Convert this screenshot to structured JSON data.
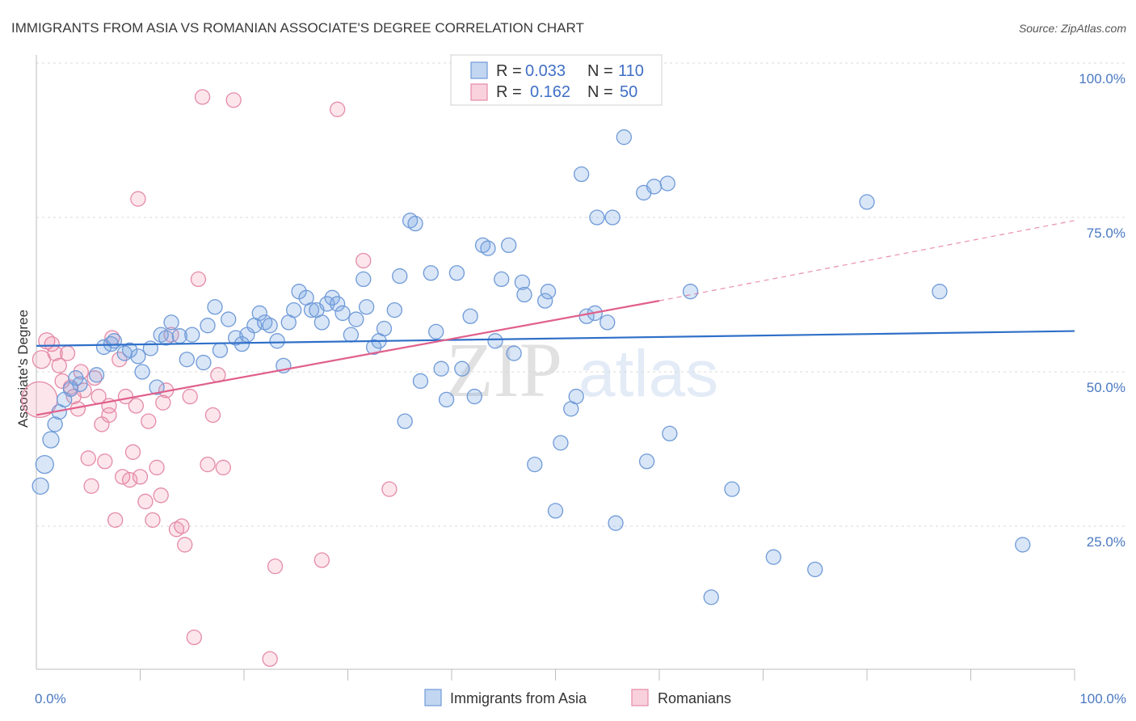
{
  "title": "IMMIGRANTS FROM ASIA VS ROMANIAN ASSOCIATE'S DEGREE CORRELATION CHART",
  "source": "Source: ZipAtlas.com",
  "watermark": "ZIPatlas",
  "colors": {
    "series_a": "#6f9ad8",
    "series_a_line": "#2f6fc8",
    "series_b": "#e58aa8",
    "series_b_line": "#e0608c",
    "tick": "#4a78c2"
  },
  "legend": {
    "rows": [
      {
        "r_label": "R =",
        "r_value": "0.033",
        "n_label": "N =",
        "n_value": "110"
      },
      {
        "r_label": "R =",
        "r_value": "0.162",
        "n_label": "N =",
        "n_value": "50"
      }
    ]
  },
  "chart_data": {
    "type": "scatter",
    "title": "IMMIGRANTS FROM ASIA VS ROMANIAN ASSOCIATE'S DEGREE CORRELATION CHART",
    "xlabel": "",
    "ylabel": "Associate's Degree",
    "xlim": [
      0,
      100
    ],
    "ylim": [
      0,
      100
    ],
    "x_tick_labels": [
      "0.0%",
      "100.0%"
    ],
    "y_ticks": [
      25,
      50,
      75,
      100
    ],
    "y_tick_labels": [
      "25.0%",
      "50.0%",
      "75.0%",
      "100.0%"
    ],
    "grid": true,
    "legend_position": "top-center",
    "series": [
      {
        "name": "Immigrants from Asia",
        "r": 0.033,
        "n": 110,
        "trend": {
          "x": [
            0,
            100
          ],
          "y": [
            54.2,
            56.6
          ]
        },
        "points": [
          {
            "x": 0.4,
            "y": 31.5,
            "s": 10
          },
          {
            "x": 0.8,
            "y": 35.0,
            "s": 11
          },
          {
            "x": 1.4,
            "y": 39.0,
            "s": 10
          },
          {
            "x": 1.8,
            "y": 41.5,
            "s": 9
          },
          {
            "x": 2.2,
            "y": 43.5,
            "s": 9
          },
          {
            "x": 2.7,
            "y": 45.5,
            "s": 9
          },
          {
            "x": 3.3,
            "y": 47.2,
            "s": 9
          },
          {
            "x": 3.8,
            "y": 49.0,
            "s": 9
          },
          {
            "x": 4.2,
            "y": 48.0,
            "s": 9
          },
          {
            "x": 5.8,
            "y": 49.5,
            "s": 9
          },
          {
            "x": 6.5,
            "y": 54.0,
            "s": 9
          },
          {
            "x": 7.2,
            "y": 54.5,
            "s": 9
          },
          {
            "x": 7.5,
            "y": 55.0,
            "s": 9
          },
          {
            "x": 8.5,
            "y": 53.0,
            "s": 9
          },
          {
            "x": 9.0,
            "y": 53.5,
            "s": 9
          },
          {
            "x": 9.8,
            "y": 52.5,
            "s": 9
          },
          {
            "x": 10.2,
            "y": 50.0,
            "s": 9
          },
          {
            "x": 11.0,
            "y": 53.8,
            "s": 9
          },
          {
            "x": 11.6,
            "y": 47.5,
            "s": 9
          },
          {
            "x": 12.0,
            "y": 56.0,
            "s": 9
          },
          {
            "x": 12.5,
            "y": 55.5,
            "s": 9
          },
          {
            "x": 13.0,
            "y": 58.0,
            "s": 9
          },
          {
            "x": 13.8,
            "y": 55.8,
            "s": 9
          },
          {
            "x": 14.5,
            "y": 52.0,
            "s": 9
          },
          {
            "x": 15.0,
            "y": 56.0,
            "s": 9
          },
          {
            "x": 16.1,
            "y": 51.5,
            "s": 9
          },
          {
            "x": 16.5,
            "y": 57.5,
            "s": 9
          },
          {
            "x": 17.2,
            "y": 60.5,
            "s": 9
          },
          {
            "x": 17.7,
            "y": 53.5,
            "s": 9
          },
          {
            "x": 18.5,
            "y": 58.5,
            "s": 9
          },
          {
            "x": 19.2,
            "y": 55.5,
            "s": 9
          },
          {
            "x": 19.8,
            "y": 54.5,
            "s": 9
          },
          {
            "x": 20.3,
            "y": 56.0,
            "s": 9
          },
          {
            "x": 21.0,
            "y": 57.5,
            "s": 9
          },
          {
            "x": 21.5,
            "y": 59.5,
            "s": 9
          },
          {
            "x": 22.0,
            "y": 58.0,
            "s": 9
          },
          {
            "x": 22.5,
            "y": 57.5,
            "s": 9
          },
          {
            "x": 23.2,
            "y": 55.0,
            "s": 9
          },
          {
            "x": 23.8,
            "y": 51.0,
            "s": 9
          },
          {
            "x": 24.3,
            "y": 58.0,
            "s": 9
          },
          {
            "x": 24.8,
            "y": 60.0,
            "s": 9
          },
          {
            "x": 25.3,
            "y": 63.0,
            "s": 9
          },
          {
            "x": 26.0,
            "y": 62.0,
            "s": 9
          },
          {
            "x": 26.5,
            "y": 60.0,
            "s": 9
          },
          {
            "x": 27.0,
            "y": 60.0,
            "s": 9
          },
          {
            "x": 27.5,
            "y": 58.0,
            "s": 9
          },
          {
            "x": 28.0,
            "y": 61.0,
            "s": 9
          },
          {
            "x": 28.5,
            "y": 62.0,
            "s": 9
          },
          {
            "x": 29.0,
            "y": 61.0,
            "s": 9
          },
          {
            "x": 29.5,
            "y": 59.5,
            "s": 9
          },
          {
            "x": 30.3,
            "y": 56.0,
            "s": 9
          },
          {
            "x": 30.8,
            "y": 58.5,
            "s": 9
          },
          {
            "x": 31.5,
            "y": 65.0,
            "s": 9
          },
          {
            "x": 31.8,
            "y": 60.5,
            "s": 9
          },
          {
            "x": 32.5,
            "y": 54.0,
            "s": 9
          },
          {
            "x": 33.0,
            "y": 55.0,
            "s": 9
          },
          {
            "x": 33.5,
            "y": 57.0,
            "s": 9
          },
          {
            "x": 34.5,
            "y": 60.0,
            "s": 9
          },
          {
            "x": 35.0,
            "y": 65.5,
            "s": 9
          },
          {
            "x": 35.5,
            "y": 42.0,
            "s": 9
          },
          {
            "x": 36.0,
            "y": 74.5,
            "s": 9
          },
          {
            "x": 36.5,
            "y": 74.0,
            "s": 9
          },
          {
            "x": 37.0,
            "y": 48.5,
            "s": 9
          },
          {
            "x": 38.0,
            "y": 66.0,
            "s": 9
          },
          {
            "x": 38.5,
            "y": 56.5,
            "s": 9
          },
          {
            "x": 39.0,
            "y": 50.5,
            "s": 9
          },
          {
            "x": 39.5,
            "y": 45.5,
            "s": 9
          },
          {
            "x": 40.5,
            "y": 66.0,
            "s": 9
          },
          {
            "x": 41.0,
            "y": 50.5,
            "s": 9
          },
          {
            "x": 41.8,
            "y": 59.0,
            "s": 9
          },
          {
            "x": 42.2,
            "y": 46.0,
            "s": 9
          },
          {
            "x": 43.0,
            "y": 70.5,
            "s": 9
          },
          {
            "x": 43.5,
            "y": 70.0,
            "s": 9
          },
          {
            "x": 44.2,
            "y": 55.0,
            "s": 9
          },
          {
            "x": 44.8,
            "y": 65.0,
            "s": 9
          },
          {
            "x": 45.5,
            "y": 70.5,
            "s": 9
          },
          {
            "x": 46.0,
            "y": 53.0,
            "s": 9
          },
          {
            "x": 46.8,
            "y": 64.5,
            "s": 9
          },
          {
            "x": 47.0,
            "y": 62.5,
            "s": 9
          },
          {
            "x": 48.0,
            "y": 35.0,
            "s": 9
          },
          {
            "x": 49.0,
            "y": 61.5,
            "s": 9
          },
          {
            "x": 49.3,
            "y": 63.0,
            "s": 9
          },
          {
            "x": 50.0,
            "y": 27.5,
            "s": 9
          },
          {
            "x": 50.5,
            "y": 38.5,
            "s": 9
          },
          {
            "x": 51.5,
            "y": 44.0,
            "s": 9
          },
          {
            "x": 52.0,
            "y": 46.0,
            "s": 9
          },
          {
            "x": 52.5,
            "y": 82.0,
            "s": 9
          },
          {
            "x": 53.0,
            "y": 59.0,
            "s": 9
          },
          {
            "x": 53.8,
            "y": 59.5,
            "s": 9
          },
          {
            "x": 54.0,
            "y": 75.0,
            "s": 9
          },
          {
            "x": 55.0,
            "y": 58.0,
            "s": 9
          },
          {
            "x": 55.5,
            "y": 75.0,
            "s": 9
          },
          {
            "x": 55.8,
            "y": 25.5,
            "s": 9
          },
          {
            "x": 56.6,
            "y": 88.0,
            "s": 9
          },
          {
            "x": 58.5,
            "y": 79.0,
            "s": 9
          },
          {
            "x": 58.8,
            "y": 35.5,
            "s": 9
          },
          {
            "x": 59.5,
            "y": 80.0,
            "s": 9
          },
          {
            "x": 61.0,
            "y": 40.0,
            "s": 9
          },
          {
            "x": 60.8,
            "y": 80.5,
            "s": 9
          },
          {
            "x": 63.0,
            "y": 63.0,
            "s": 9
          },
          {
            "x": 65.0,
            "y": 13.5,
            "s": 9
          },
          {
            "x": 67.0,
            "y": 31.0,
            "s": 9
          },
          {
            "x": 71.0,
            "y": 20.0,
            "s": 9
          },
          {
            "x": 75.0,
            "y": 18.0,
            "s": 9
          },
          {
            "x": 80.0,
            "y": 77.5,
            "s": 9
          },
          {
            "x": 87.0,
            "y": 63.0,
            "s": 9
          },
          {
            "x": 95.0,
            "y": 22.0,
            "s": 9
          }
        ]
      },
      {
        "name": "Romanians",
        "r": 0.162,
        "n": 50,
        "trend": {
          "x": [
            0,
            60
          ],
          "y": [
            43.0,
            61.5
          ]
        },
        "trend_dashed": {
          "x": [
            60,
            100
          ],
          "y": [
            61.5,
            74.5
          ]
        },
        "points": [
          {
            "x": 0.3,
            "y": 45.5,
            "s": 22
          },
          {
            "x": 0.5,
            "y": 52.0,
            "s": 11
          },
          {
            "x": 1.0,
            "y": 55.0,
            "s": 10
          },
          {
            "x": 1.5,
            "y": 54.5,
            "s": 9
          },
          {
            "x": 1.8,
            "y": 53.0,
            "s": 9
          },
          {
            "x": 2.2,
            "y": 51.0,
            "s": 9
          },
          {
            "x": 2.5,
            "y": 48.5,
            "s": 9
          },
          {
            "x": 3.0,
            "y": 53.0,
            "s": 9
          },
          {
            "x": 3.3,
            "y": 47.5,
            "s": 9
          },
          {
            "x": 3.6,
            "y": 46.0,
            "s": 9
          },
          {
            "x": 4.0,
            "y": 44.0,
            "s": 9
          },
          {
            "x": 4.3,
            "y": 50.0,
            "s": 9
          },
          {
            "x": 4.6,
            "y": 47.0,
            "s": 9
          },
          {
            "x": 5.0,
            "y": 36.0,
            "s": 9
          },
          {
            "x": 5.3,
            "y": 31.5,
            "s": 9
          },
          {
            "x": 5.6,
            "y": 49.0,
            "s": 9
          },
          {
            "x": 6.0,
            "y": 46.0,
            "s": 9
          },
          {
            "x": 6.3,
            "y": 41.5,
            "s": 9
          },
          {
            "x": 6.6,
            "y": 35.5,
            "s": 9
          },
          {
            "x": 7.0,
            "y": 44.5,
            "s": 9
          },
          {
            "x": 7.3,
            "y": 55.5,
            "s": 9
          },
          {
            "x": 7.6,
            "y": 26.0,
            "s": 9
          },
          {
            "x": 8.0,
            "y": 52.0,
            "s": 9
          },
          {
            "x": 8.3,
            "y": 33.0,
            "s": 9
          },
          {
            "x": 8.6,
            "y": 46.0,
            "s": 9
          },
          {
            "x": 9.0,
            "y": 32.5,
            "s": 9
          },
          {
            "x": 9.3,
            "y": 37.0,
            "s": 9
          },
          {
            "x": 9.6,
            "y": 44.5,
            "s": 9
          },
          {
            "x": 9.8,
            "y": 78.0,
            "s": 9
          },
          {
            "x": 10.0,
            "y": 33.0,
            "s": 9
          },
          {
            "x": 10.5,
            "y": 29.0,
            "s": 9
          },
          {
            "x": 10.8,
            "y": 42.0,
            "s": 9
          },
          {
            "x": 11.2,
            "y": 26.0,
            "s": 9
          },
          {
            "x": 11.6,
            "y": 34.5,
            "s": 9
          },
          {
            "x": 12.0,
            "y": 30.0,
            "s": 9
          },
          {
            "x": 12.5,
            "y": 47.0,
            "s": 9
          },
          {
            "x": 13.0,
            "y": 56.0,
            "s": 9
          },
          {
            "x": 13.5,
            "y": 24.5,
            "s": 9
          },
          {
            "x": 14.0,
            "y": 25.0,
            "s": 9
          },
          {
            "x": 14.3,
            "y": 22.0,
            "s": 9
          },
          {
            "x": 14.8,
            "y": 46.0,
            "s": 9
          },
          {
            "x": 15.2,
            "y": 7.0,
            "s": 9
          },
          {
            "x": 15.6,
            "y": 65.0,
            "s": 9
          },
          {
            "x": 16.0,
            "y": 94.5,
            "s": 9
          },
          {
            "x": 16.5,
            "y": 35.0,
            "s": 9
          },
          {
            "x": 17.0,
            "y": 43.0,
            "s": 9
          },
          {
            "x": 17.5,
            "y": 49.5,
            "s": 9
          },
          {
            "x": 18.0,
            "y": 34.5,
            "s": 9
          },
          {
            "x": 19.0,
            "y": 94.0,
            "s": 9
          },
          {
            "x": 22.5,
            "y": 3.5,
            "s": 9
          },
          {
            "x": 23.0,
            "y": 18.5,
            "s": 9
          },
          {
            "x": 27.5,
            "y": 19.5,
            "s": 9
          },
          {
            "x": 29.0,
            "y": 92.5,
            "s": 9
          },
          {
            "x": 31.5,
            "y": 68.0,
            "s": 9
          },
          {
            "x": 34.0,
            "y": 31.0,
            "s": 9
          },
          {
            "x": 54.5,
            "y": 100.0,
            "s": 9
          },
          {
            "x": 7.0,
            "y": 43.0,
            "s": 9
          },
          {
            "x": 12.2,
            "y": 45.0,
            "s": 9
          }
        ]
      }
    ]
  }
}
